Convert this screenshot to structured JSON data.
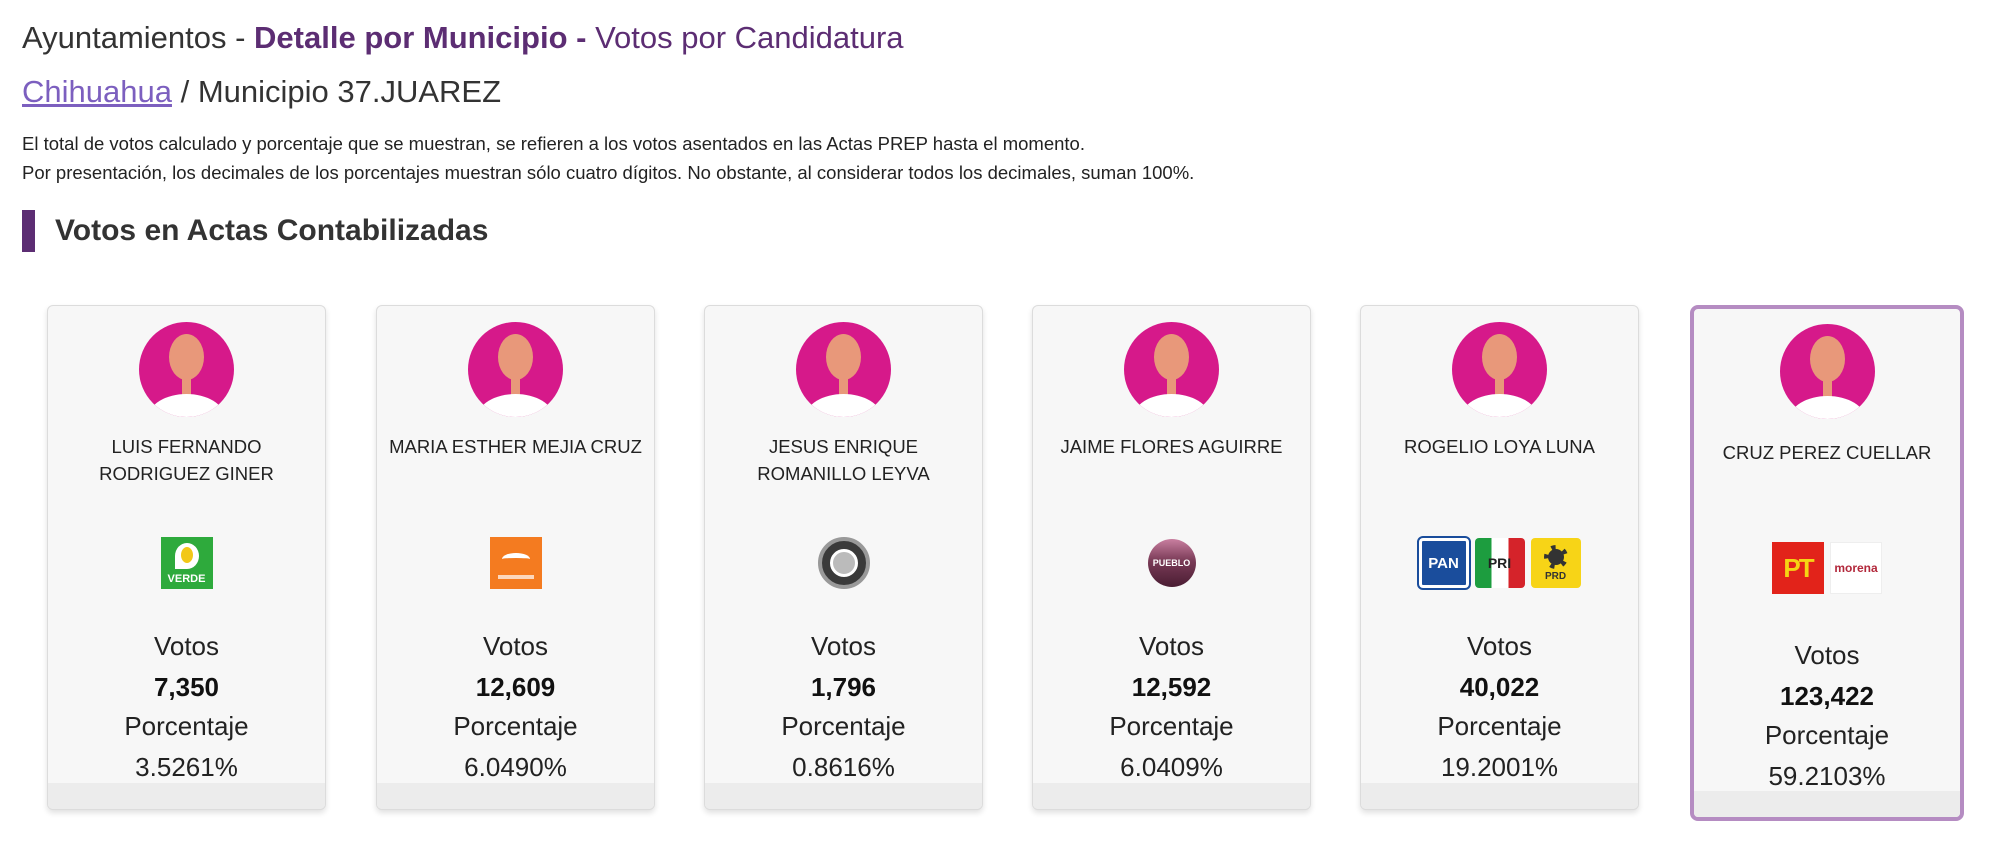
{
  "header": {
    "title_prefix": "Ayuntamientos - ",
    "title_bold": "Detalle por Municipio -",
    "title_suffix": " Votos por Candidatura"
  },
  "breadcrumb": {
    "state_link": "Chihuahua",
    "separator": " / ",
    "municipality": "Municipio 37.JUAREZ"
  },
  "notes": [
    "El total de votos calculado y porcentaje que se muestran, se refieren a los votos asentados en las Actas PREP hasta el momento.",
    "Por presentación, los decimales de los porcentajes muestran sólo cuatro dígitos. No obstante, al considerar todos los decimales, suman 100%."
  ],
  "section": {
    "title": "Votos en Actas Contabilizadas"
  },
  "labels": {
    "votes": "Votos",
    "percentage": "Porcentaje"
  },
  "colors": {
    "accent": "#5c2d73",
    "avatar_bg": "#d6198a",
    "winner_border": "#b58cc2",
    "link": "#7c5fbf"
  },
  "candidates": [
    {
      "name": "LUIS FERNANDO RODRIGUEZ GINER",
      "parties": [
        "VERDE"
      ],
      "party_icon": "verde-party-logo-icon",
      "votes": "7,350",
      "percentage": "3.5261%"
    },
    {
      "name": "MARIA ESTHER MEJIA CRUZ",
      "parties": [
        "MOVIMIENTO CIUDADANO"
      ],
      "party_icon": "movimiento-ciudadano-logo-icon",
      "votes": "12,609",
      "percentage": "6.0490%"
    },
    {
      "name": "JESUS ENRIQUE ROMANILLO LEYVA",
      "parties": [
        "PES"
      ],
      "party_icon": "pes-party-logo-icon",
      "votes": "1,796",
      "percentage": "0.8616%"
    },
    {
      "name": "JAIME FLORES AGUIRRE",
      "parties": [
        "PUEBLO"
      ],
      "party_icon": "pueblo-party-logo-icon",
      "votes": "12,592",
      "percentage": "6.0409%"
    },
    {
      "name": "ROGELIO LOYA LUNA",
      "parties": [
        "PAN",
        "PRI",
        "PRD"
      ],
      "party_icon": "pan-pri-prd-logos-icon",
      "votes": "40,022",
      "percentage": "19.2001%"
    },
    {
      "name": "CRUZ PEREZ CUELLAR",
      "parties": [
        "PT",
        "morena"
      ],
      "party_icon": "pt-morena-logos-icon",
      "votes": "123,422",
      "percentage": "59.2103%",
      "winner": true
    }
  ]
}
